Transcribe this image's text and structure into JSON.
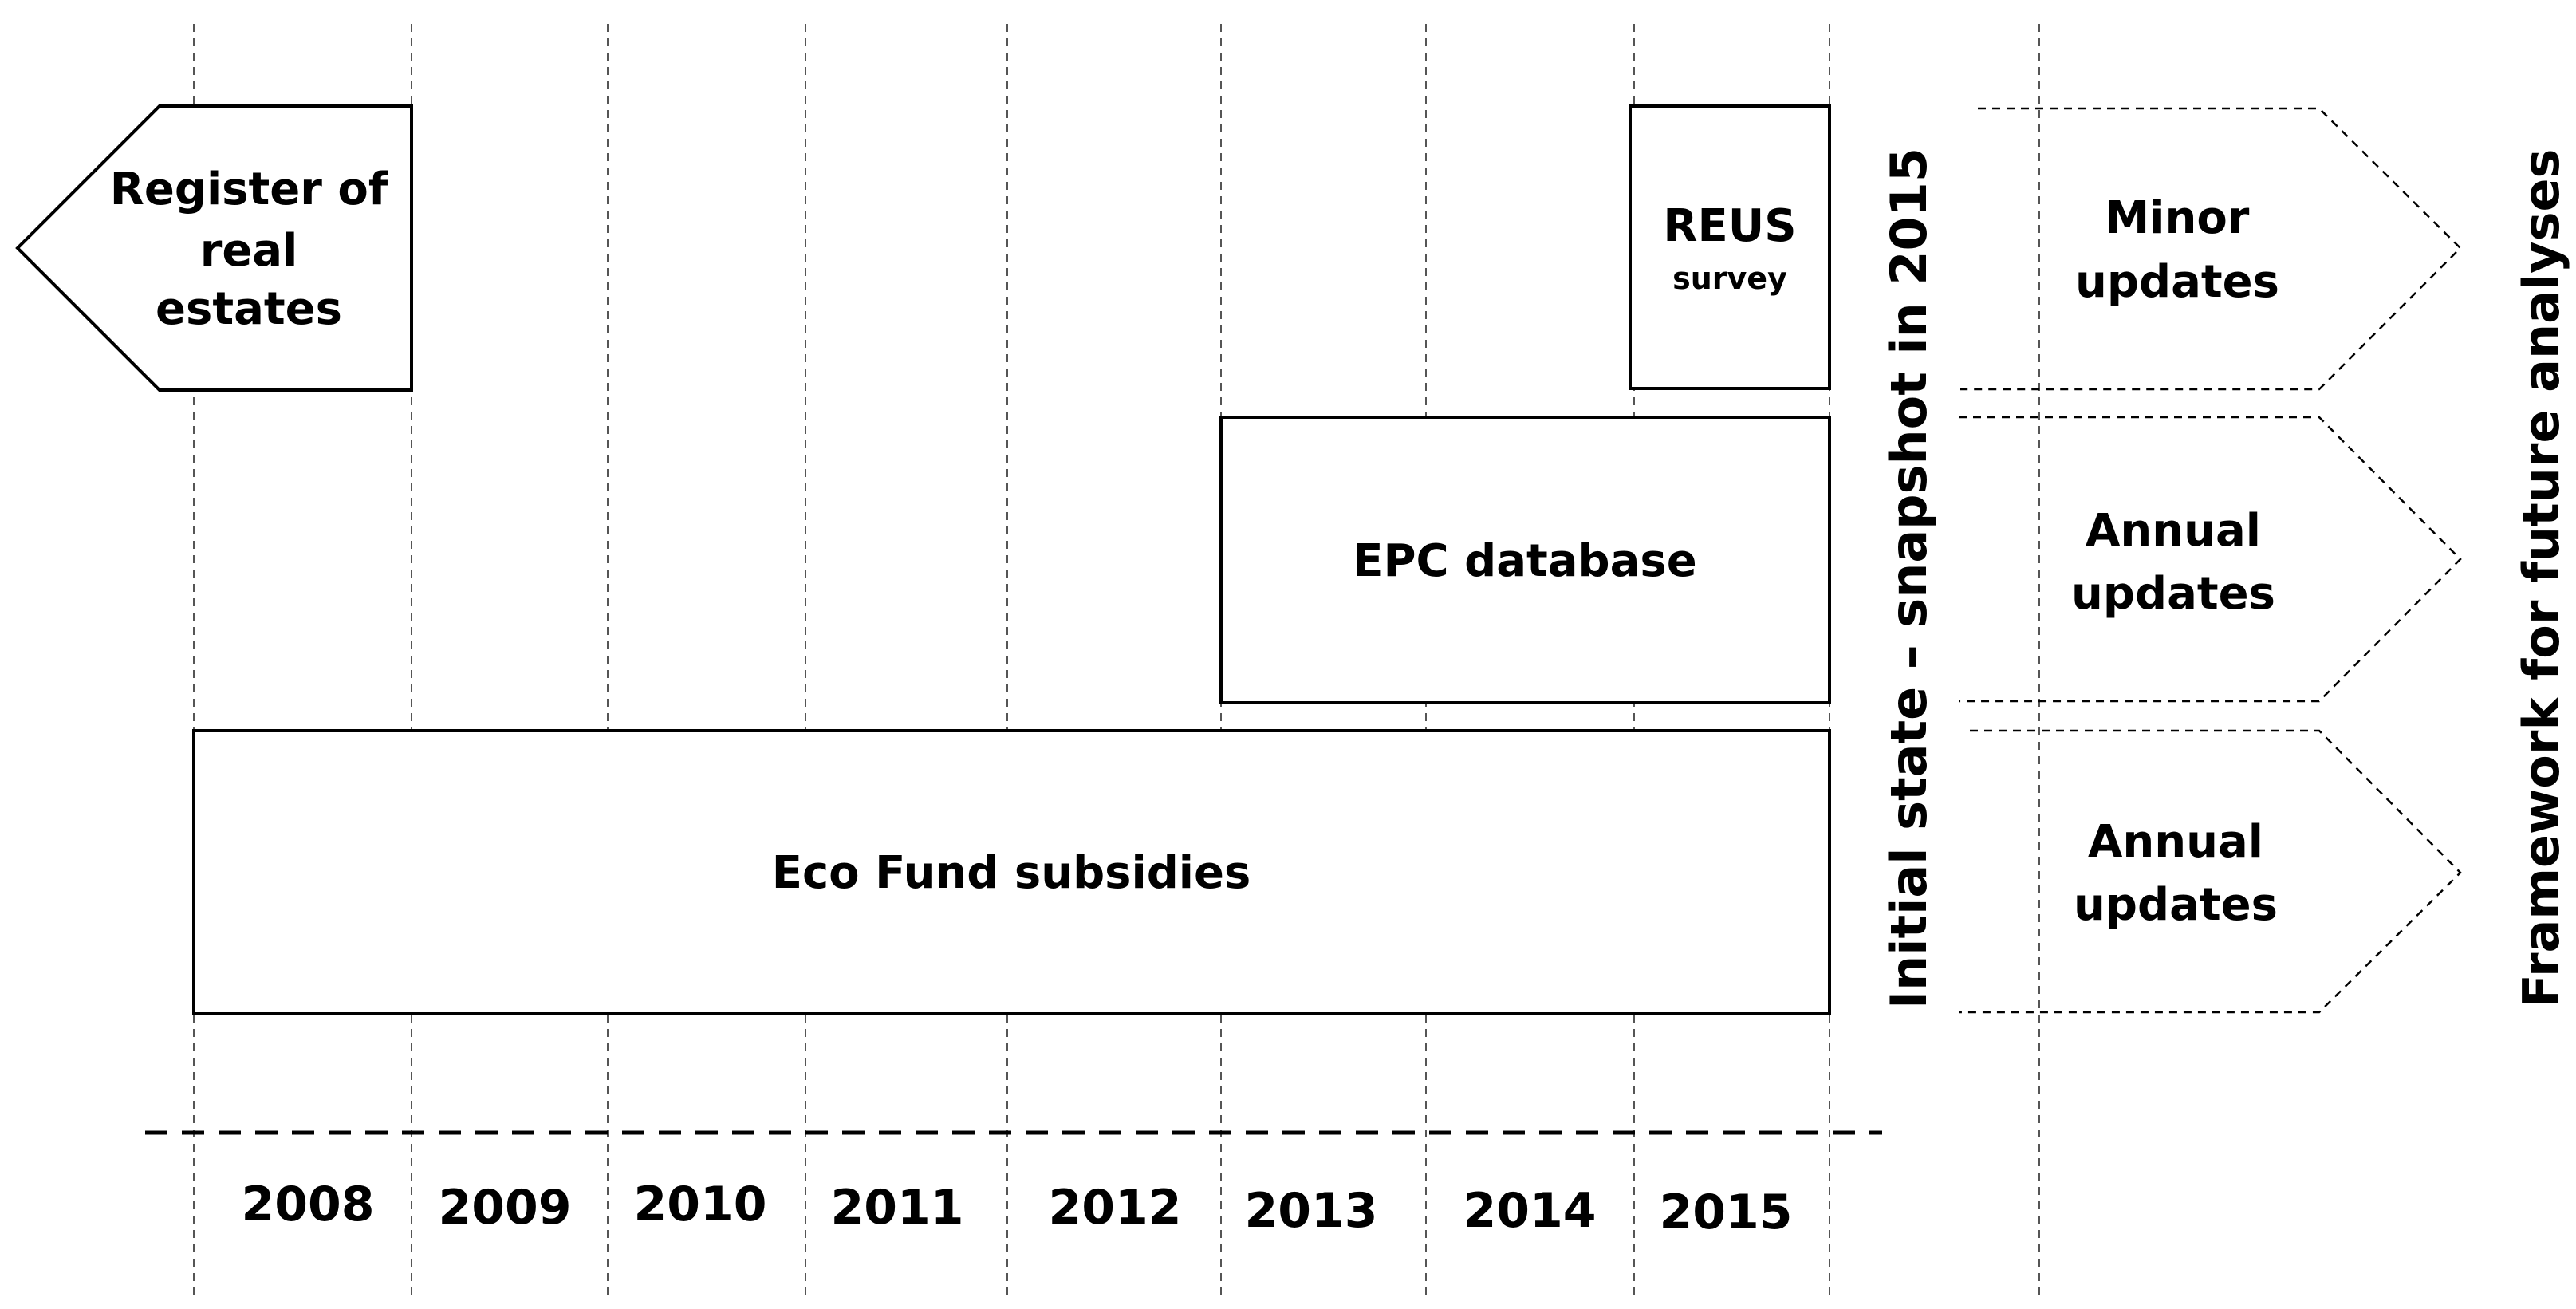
{
  "years": [
    "2008",
    "2009",
    "2010",
    "2011",
    "2012",
    "2013",
    "2014",
    "2015"
  ],
  "register": {
    "line1": "Register of",
    "line2": "real",
    "line3": "estates"
  },
  "reus": {
    "line1": "REUS",
    "line2": "survey"
  },
  "epc": {
    "label": "EPC database"
  },
  "eco": {
    "label": "Eco Fund subsidies"
  },
  "initial_state": "Initial state – snapshot in 2015",
  "framework": "Framework for future analyses",
  "future_updates": [
    {
      "line1": "Minor",
      "line2": "updates"
    },
    {
      "line1": "Annual",
      "line2": "updates"
    },
    {
      "line1": "Annual",
      "line2": "updates"
    }
  ]
}
